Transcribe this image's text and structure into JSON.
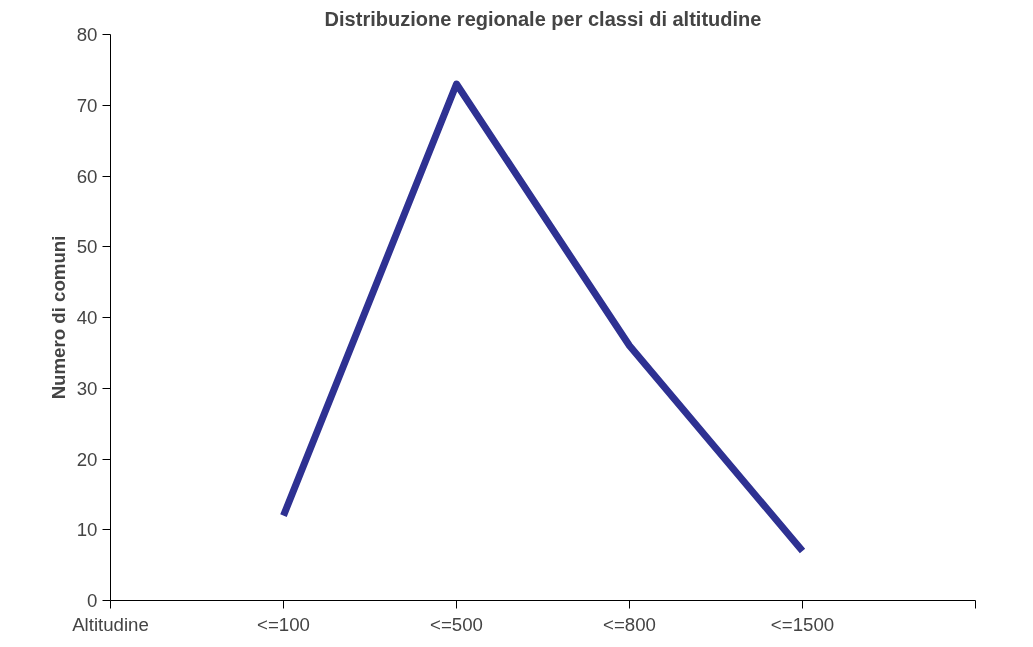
{
  "chart_data": {
    "type": "line",
    "title": "Distribuzione regionale per classi di altitudine",
    "ylabel": "Numero di comuni",
    "categories": [
      "Altitudine",
      "<=100",
      "<=500",
      "<=800",
      "<=1500",
      null
    ],
    "series": [
      {
        "color": "#2e3192",
        "values": [
          null,
          12,
          73,
          36,
          7,
          null
        ]
      }
    ],
    "ylim": [
      0,
      80
    ],
    "yticks": [
      0,
      10,
      20,
      30,
      40,
      50,
      60,
      70,
      80
    ],
    "grid": false,
    "marker": "none",
    "line_style": "solid"
  }
}
